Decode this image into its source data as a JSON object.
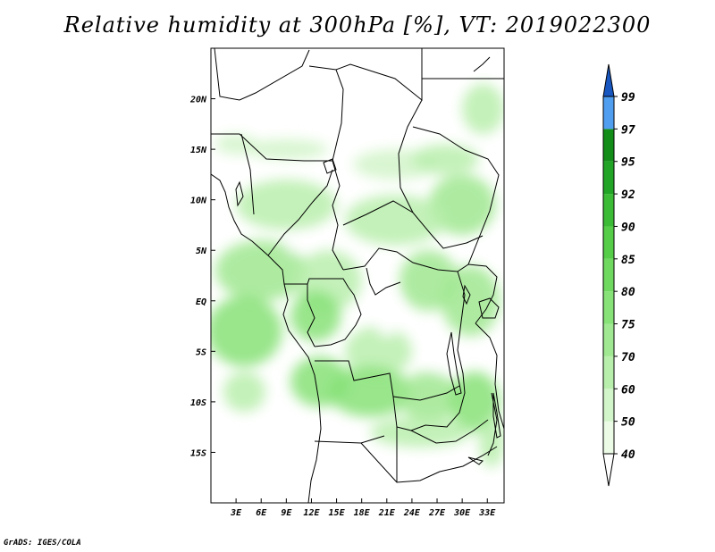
{
  "title": "Relative humidity at 300hPa [%], VT: 2019022300",
  "credit": "GrADS: IGES/COLA",
  "map": {
    "lon_range": [
      0,
      35
    ],
    "lat_range": [
      -20,
      25
    ],
    "lat_ticks": [
      {
        "value": 20,
        "label": "20N"
      },
      {
        "value": 15,
        "label": "15N"
      },
      {
        "value": 10,
        "label": "10N"
      },
      {
        "value": 5,
        "label": "5N"
      },
      {
        "value": 0,
        "label": "EQ"
      },
      {
        "value": -5,
        "label": "5S"
      },
      {
        "value": -10,
        "label": "10S"
      },
      {
        "value": -15,
        "label": "15S"
      }
    ],
    "lon_ticks": [
      {
        "value": 3,
        "label": "3E"
      },
      {
        "value": 6,
        "label": "6E"
      },
      {
        "value": 9,
        "label": "9E"
      },
      {
        "value": 12,
        "label": "12E"
      },
      {
        "value": 15,
        "label": "15E"
      },
      {
        "value": 18,
        "label": "18E"
      },
      {
        "value": 21,
        "label": "21E"
      },
      {
        "value": 24,
        "label": "24E"
      },
      {
        "value": 27,
        "label": "27E"
      },
      {
        "value": 30,
        "label": "30E"
      },
      {
        "value": 33,
        "label": "33E"
      }
    ]
  },
  "colorbar": {
    "levels": [
      "40",
      "50",
      "60",
      "70",
      "75",
      "80",
      "85",
      "90",
      "92",
      "95",
      "97",
      "99"
    ],
    "colors": [
      "#ebfbe5",
      "#d2f5c9",
      "#b9efad",
      "#a0e891",
      "#87e277",
      "#6fd95f",
      "#55cd48",
      "#3cbc36",
      "#22a526",
      "#128e18",
      "#4f9ef0",
      "#2b79de",
      "#1856c0"
    ],
    "under_color": "#ffffff"
  },
  "humidity_fields": [
    {
      "lon": 3.0,
      "lat": 15.5,
      "rx": 2.5,
      "ry": 1.0,
      "level": 1
    },
    {
      "lon": 9.0,
      "lat": 15.0,
      "rx": 5.0,
      "ry": 1.0,
      "level": 1
    },
    {
      "lon": 22.0,
      "lat": 13.5,
      "rx": 5.0,
      "ry": 1.5,
      "level": 1
    },
    {
      "lon": 28.0,
      "lat": 14.0,
      "rx": 4.0,
      "ry": 1.5,
      "level": 2
    },
    {
      "lon": 32.5,
      "lat": 19.0,
      "rx": 2.5,
      "ry": 2.5,
      "level": 2
    },
    {
      "lon": 30.0,
      "lat": 9.5,
      "rx": 4.0,
      "ry": 3.0,
      "level": 3
    },
    {
      "lon": 9.0,
      "lat": 9.5,
      "rx": 6.0,
      "ry": 2.5,
      "level": 2
    },
    {
      "lon": 22.0,
      "lat": 8.0,
      "rx": 6.0,
      "ry": 2.5,
      "level": 2
    },
    {
      "lon": 6.0,
      "lat": 3.0,
      "rx": 5.5,
      "ry": 3.0,
      "level": 3
    },
    {
      "lon": 14.0,
      "lat": 2.0,
      "rx": 4.0,
      "ry": 3.0,
      "level": 2
    },
    {
      "lon": 4.0,
      "lat": -3.0,
      "rx": 4.5,
      "ry": 3.5,
      "level": 4
    },
    {
      "lon": 12.5,
      "lat": -1.5,
      "rx": 3.0,
      "ry": 2.5,
      "level": 4
    },
    {
      "lon": 26.0,
      "lat": 2.0,
      "rx": 3.5,
      "ry": 3.0,
      "level": 3
    },
    {
      "lon": 31.0,
      "lat": 0.0,
      "rx": 3.5,
      "ry": 3.5,
      "level": 3
    },
    {
      "lon": 20.0,
      "lat": -5.0,
      "rx": 4.0,
      "ry": 2.5,
      "level": 2
    },
    {
      "lon": 13.0,
      "lat": -8.0,
      "rx": 3.5,
      "ry": 2.5,
      "level": 4
    },
    {
      "lon": 19.0,
      "lat": -9.0,
      "rx": 5.0,
      "ry": 2.5,
      "level": 4
    },
    {
      "lon": 26.0,
      "lat": -9.5,
      "rx": 3.5,
      "ry": 2.5,
      "level": 3
    },
    {
      "lon": 31.5,
      "lat": -10.0,
      "rx": 3.0,
      "ry": 3.0,
      "level": 4
    },
    {
      "lon": 4.0,
      "lat": -9.0,
      "rx": 2.5,
      "ry": 2.0,
      "level": 2
    },
    {
      "lon": 25.0,
      "lat": -13.0,
      "rx": 6.0,
      "ry": 1.5,
      "level": 2
    },
    {
      "lon": 33.5,
      "lat": -14.0,
      "rx": 1.5,
      "ry": 2.5,
      "level": 2
    }
  ],
  "humidity_gaps": [
    {
      "lon": 21.0,
      "lat": -1.0,
      "rx": 1.5,
      "ry": 2.5
    },
    {
      "lon": 27.5,
      "lat": -6.0,
      "rx": 1.2,
      "ry": 1.2
    },
    {
      "lon": 10.5,
      "lat": 5.5,
      "rx": 1.5,
      "ry": 0.8
    }
  ]
}
